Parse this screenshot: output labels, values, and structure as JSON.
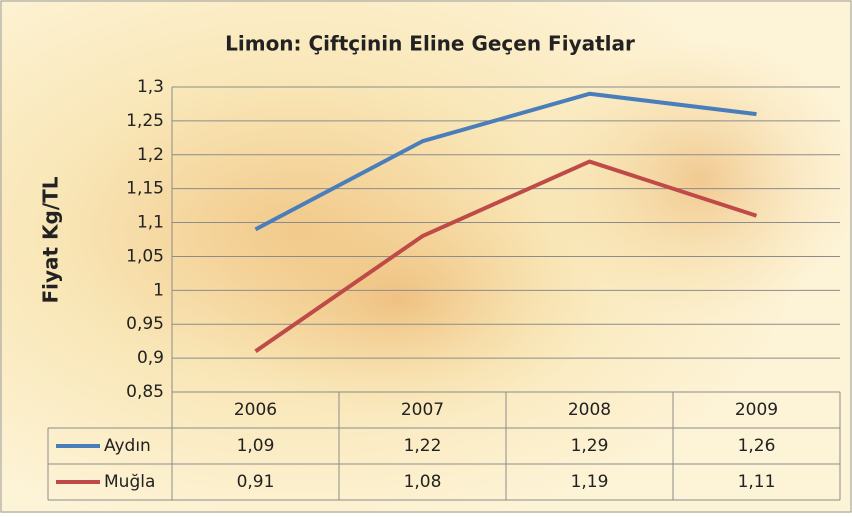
{
  "chart_data": {
    "type": "line",
    "title": "Limon: Çiftçinin Eline Geçen Fiyatlar",
    "y_label": "Fiyat Kg/TL",
    "categories": [
      "2006",
      "2007",
      "2008",
      "2009"
    ],
    "series": [
      {
        "name": "Aydın",
        "color": "#4a7ebb",
        "values": [
          1.09,
          1.22,
          1.29,
          1.26
        ],
        "value_labels": [
          "1,09",
          "1,22",
          "1,29",
          "1,26"
        ]
      },
      {
        "name": "Muğla",
        "color": "#be4b48",
        "values": [
          0.91,
          1.08,
          1.19,
          1.11
        ],
        "value_labels": [
          "0,91",
          "1,08",
          "1,19",
          "1,11"
        ]
      }
    ],
    "ylim": [
      0.85,
      1.3
    ],
    "yticks": [
      {
        "value": 0.85,
        "label": "0,85"
      },
      {
        "value": 0.9,
        "label": "0,9"
      },
      {
        "value": 0.95,
        "label": "0,95"
      },
      1,
      {
        "value": 1.05,
        "label": "1,05"
      },
      {
        "value": 1.1,
        "label": "1,1"
      },
      {
        "value": 1.15,
        "label": "1,15"
      },
      {
        "value": 1.2,
        "label": "1,2"
      },
      {
        "value": 1.25,
        "label": "1,25"
      },
      {
        "value": 1.3,
        "label": "1,3"
      }
    ],
    "grid": true,
    "data_table": true
  }
}
